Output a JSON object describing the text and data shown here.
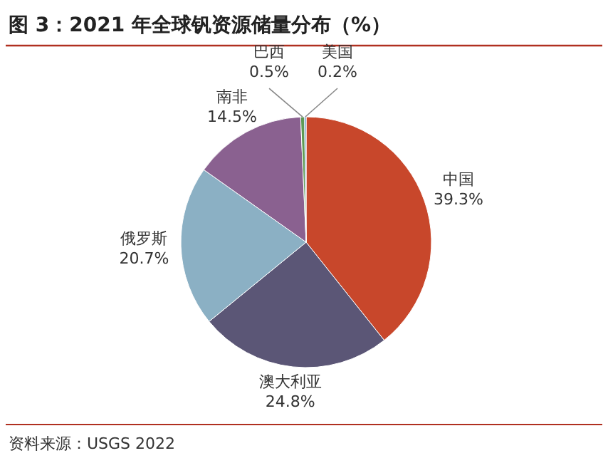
{
  "chart_data": {
    "type": "pie",
    "title": "图 3：2021 年全球钒资源储量分布（%）",
    "categories": [
      "中国",
      "澳大利亚",
      "俄罗斯",
      "南非",
      "巴西",
      "美国"
    ],
    "values": [
      39.3,
      24.8,
      20.7,
      14.5,
      0.5,
      0.2
    ],
    "colors": [
      "#c8472b",
      "#5b5676",
      "#8bb0c4",
      "#8a6190",
      "#5f9a55",
      "#4a86c0"
    ],
    "value_labels": [
      "39.3%",
      "24.8%",
      "20.7%",
      "14.5%",
      "0.5%",
      "0.2%"
    ],
    "annotations": [
      "资料来源：USGS 2022"
    ]
  }
}
